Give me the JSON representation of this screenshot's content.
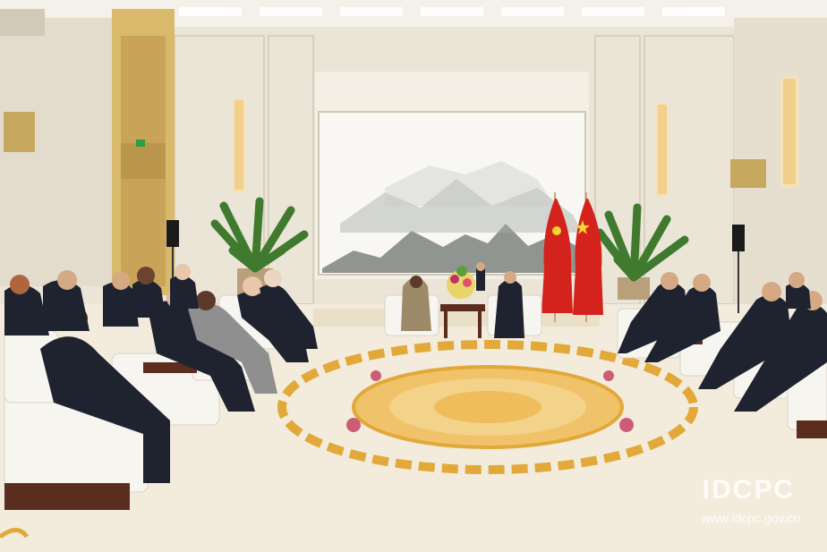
{
  "image": {
    "scene": "Formal meeting hall with two rows of delegates seated on white armchairs facing each other across a large ornamental carpet",
    "watermark": {
      "logo_text": "IDCPC",
      "url_text": "www.idcpc.gov.cn"
    }
  },
  "colors": {
    "wall": "#ece6da",
    "carpet": "#f3ecdd",
    "carpet_ornament": "#e2a93a",
    "flag_red": "#d4221c",
    "flag_star": "#f6d433",
    "chair": "#f7f5f0",
    "chair_wood": "#5a2d1e",
    "suit": "#1f2330",
    "plant": "#3f7a2e"
  }
}
